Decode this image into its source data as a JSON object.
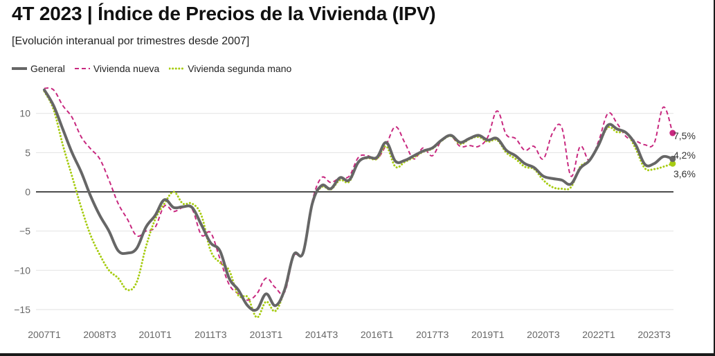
{
  "header": {
    "title": "4T 2023 | Índice de Precios de la Vivienda (IPV)",
    "subtitle": "[Evolución interanual por trimestres desde 2007]"
  },
  "colors": {
    "general": "#666666",
    "nueva": "#c8287f",
    "segunda": "#a7cc12",
    "grid": "#e2e2e2",
    "zero": "#111111"
  },
  "chart_data": {
    "type": "line",
    "title": "4T 2023 | Índice de Precios de la Vivienda (IPV)",
    "subtitle": "[Evolución interanual por trimestres desde 2007]",
    "xlabel": "",
    "ylabel": "",
    "x_start": "2007T1",
    "x_ticks": [
      "2007T1",
      "2008T3",
      "2010T1",
      "2011T3",
      "2013T1",
      "2014T3",
      "2016T1",
      "2017T3",
      "2019T1",
      "2020T3",
      "2022T1",
      "2023T3"
    ],
    "ylim": [
      -16,
      14
    ],
    "y_ticks": [
      10,
      5,
      0,
      -5,
      -10,
      -15
    ],
    "grid": true,
    "legend_position": "top-left",
    "series": [
      {
        "name": "General",
        "style": "solid",
        "end_label": "4,2%",
        "values": [
          13.0,
          11.0,
          8.0,
          5.0,
          2.5,
          -0.5,
          -3.0,
          -5.0,
          -7.5,
          -7.8,
          -7.2,
          -4.5,
          -3.0,
          -1.0,
          -2.0,
          -1.9,
          -2.0,
          -4.2,
          -6.5,
          -7.5,
          -11.0,
          -12.5,
          -14.5,
          -15.0,
          -13.0,
          -14.5,
          -12.5,
          -8.0,
          -7.8,
          -1.5,
          0.8,
          0.4,
          1.8,
          1.5,
          3.8,
          4.4,
          4.4,
          6.3,
          3.9,
          4.0,
          4.6,
          5.2,
          5.6,
          6.6,
          7.2,
          6.3,
          6.8,
          7.2,
          6.6,
          6.8,
          5.3,
          4.6,
          3.6,
          3.1,
          2.0,
          1.7,
          1.5,
          1.0,
          3.0,
          4.0,
          6.0,
          8.5,
          8.0,
          7.5,
          6.0,
          3.5,
          3.6,
          4.5,
          4.2
        ]
      },
      {
        "name": "Vivienda nueva",
        "style": "dashed",
        "end_label": "7,5%",
        "values": [
          13.2,
          13.0,
          11.0,
          9.5,
          7.0,
          5.5,
          4.2,
          1.5,
          -1.5,
          -3.5,
          -5.6,
          -5.0,
          -4.5,
          -1.8,
          -2.5,
          -2.0,
          -2.2,
          -5.5,
          -5.2,
          -8.5,
          -11.8,
          -13.0,
          -13.8,
          -13.0,
          -11.0,
          -12.2,
          -12.8,
          -8.2,
          -7.8,
          -1.2,
          1.8,
          1.2,
          1.8,
          2.0,
          4.4,
          4.6,
          4.2,
          6.0,
          8.3,
          6.3,
          4.2,
          5.6,
          4.6,
          6.6,
          7.1,
          5.8,
          5.9,
          5.8,
          7.0,
          10.3,
          7.3,
          6.8,
          5.3,
          5.8,
          4.2,
          7.5,
          8.2,
          2.0,
          5.8,
          4.0,
          6.5,
          10.0,
          8.7,
          7.0,
          6.5,
          6.0,
          6.2,
          10.8,
          7.5
        ]
      },
      {
        "name": "Vivienda segunda mano",
        "style": "dotted",
        "end_label": "3,6%",
        "values": [
          12.8,
          10.5,
          6.0,
          2.0,
          -2.0,
          -5.5,
          -8.0,
          -10.0,
          -11.0,
          -12.5,
          -11.5,
          -7.0,
          -3.5,
          -1.5,
          0.0,
          -1.5,
          -1.5,
          -3.0,
          -7.5,
          -9.0,
          -10.0,
          -13.2,
          -13.4,
          -16.0,
          -14.0,
          -15.2,
          -12.5,
          -8.0,
          -7.8,
          -1.5,
          0.6,
          0.3,
          1.5,
          1.3,
          3.8,
          4.3,
          4.2,
          5.8,
          3.2,
          3.8,
          4.4,
          5.1,
          5.5,
          6.5,
          7.1,
          6.1,
          6.7,
          7.0,
          6.4,
          6.6,
          5.0,
          4.2,
          3.2,
          2.9,
          1.5,
          0.6,
          0.4,
          0.6,
          3.2,
          4.0,
          6.0,
          8.2,
          7.6,
          7.5,
          5.5,
          3.0,
          2.9,
          3.2,
          3.6
        ]
      }
    ]
  }
}
